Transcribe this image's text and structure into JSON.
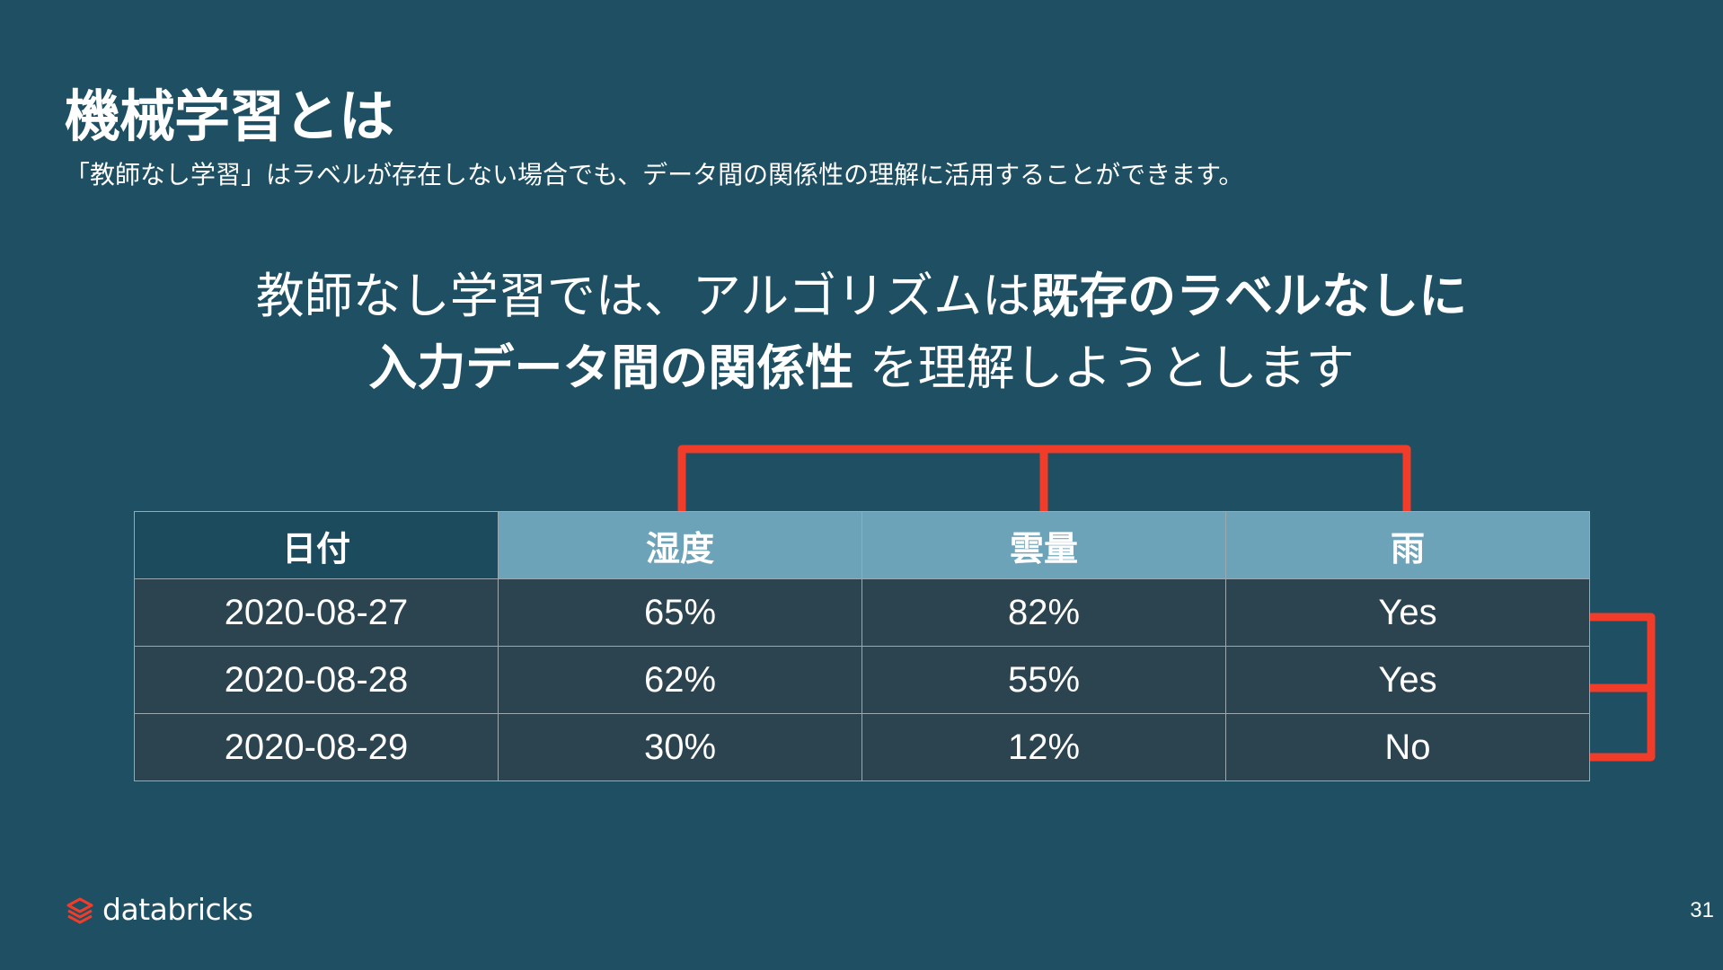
{
  "slide": {
    "title": "機械学習とは",
    "subtitle": "「教師なし学習」はラベルが存在しない場合でも、データ間の関係性の理解に活用することができます。",
    "headline": {
      "line1_regular": "教師なし学習では、アルゴリズムは",
      "line1_bold": "既存のラベルなしに",
      "line2_bold": "入力データ間の関係性",
      "line2_regular": " を理解しようとします"
    }
  },
  "table": {
    "headers": [
      "日付",
      "湿度",
      "雲量",
      "雨"
    ],
    "rows": [
      [
        "2020-08-27",
        "65%",
        "82%",
        "Yes"
      ],
      [
        "2020-08-28",
        "62%",
        "55%",
        "Yes"
      ],
      [
        "2020-08-29",
        "30%",
        "12%",
        "No"
      ]
    ]
  },
  "colors": {
    "background": "#1e4f62",
    "bracket": "#f03c28",
    "feature_header": "#6ca3b8",
    "cell": "#2c4450"
  },
  "footer": {
    "logo_text": "databricks",
    "logo_icon": "databricks-logo-icon",
    "page_number": "31"
  }
}
